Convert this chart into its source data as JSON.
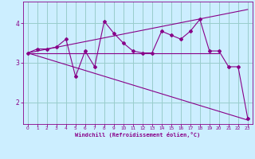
{
  "xlabel": "Windchill (Refroidissement éolien,°C)",
  "bg_color": "#cceeff",
  "line_color": "#880088",
  "grid_color": "#99cccc",
  "x_ticks": [
    0,
    1,
    2,
    3,
    4,
    5,
    6,
    7,
    8,
    9,
    10,
    11,
    12,
    13,
    14,
    15,
    16,
    17,
    18,
    19,
    20,
    21,
    22,
    23
  ],
  "y_ticks": [
    2,
    3,
    4
  ],
  "xlim": [
    -0.5,
    23.5
  ],
  "ylim": [
    1.45,
    4.55
  ],
  "series": [
    {
      "x": [
        0,
        1,
        2,
        3,
        4,
        5,
        6,
        7,
        8,
        9,
        10,
        11,
        12,
        13,
        14,
        15,
        16,
        17,
        18,
        19,
        20,
        21,
        22,
        23
      ],
      "y": [
        3.25,
        3.35,
        3.35,
        3.4,
        3.6,
        2.65,
        3.3,
        2.9,
        4.05,
        3.75,
        3.5,
        3.3,
        3.25,
        3.25,
        3.8,
        3.7,
        3.6,
        3.8,
        4.1,
        3.3,
        3.3,
        2.9,
        2.9,
        1.6
      ]
    },
    {
      "x": [
        0,
        23
      ],
      "y": [
        3.25,
        4.35
      ]
    },
    {
      "x": [
        0,
        20
      ],
      "y": [
        3.25,
        3.25
      ]
    },
    {
      "x": [
        0,
        23
      ],
      "y": [
        3.25,
        1.55
      ]
    }
  ]
}
